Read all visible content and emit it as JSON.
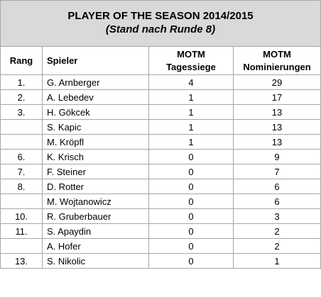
{
  "title": "PLAYER OF THE SEASON 2014/2015",
  "subtitle": "(Stand nach Runde 8)",
  "headers": {
    "rang": "Rang",
    "spieler": "Spieler",
    "tagessiege_line1": "MOTM",
    "tagessiege_line2": "Tagessiege",
    "nominierungen_line1": "MOTM",
    "nominierungen_line2": "Nominierungen"
  },
  "rows": [
    {
      "rang": "1.",
      "name": "G. Arnberger",
      "tagessiege": "4",
      "nominierungen": "29"
    },
    {
      "rang": "2.",
      "name": "A. Lebedev",
      "tagessiege": "1",
      "nominierungen": "17"
    },
    {
      "rang": "3.",
      "name": "H. Gökcek",
      "tagessiege": "1",
      "nominierungen": "13"
    },
    {
      "rang": "",
      "name": "S. Kapic",
      "tagessiege": "1",
      "nominierungen": "13"
    },
    {
      "rang": "",
      "name": "M. Kröpfl",
      "tagessiege": "1",
      "nominierungen": "13"
    },
    {
      "rang": "6.",
      "name": "K. Krisch",
      "tagessiege": "0",
      "nominierungen": "9"
    },
    {
      "rang": "7.",
      "name": "F. Steiner",
      "tagessiege": "0",
      "nominierungen": "7"
    },
    {
      "rang": "8.",
      "name": "D. Rotter",
      "tagessiege": "0",
      "nominierungen": "6"
    },
    {
      "rang": "",
      "name": "M. Wojtanowicz",
      "tagessiege": "0",
      "nominierungen": "6"
    },
    {
      "rang": "10.",
      "name": "R. Gruberbauer",
      "tagessiege": "0",
      "nominierungen": "3"
    },
    {
      "rang": "11.",
      "name": "S. Apaydin",
      "tagessiege": "0",
      "nominierungen": "2"
    },
    {
      "rang": "",
      "name": "A. Hofer",
      "tagessiege": "0",
      "nominierungen": "2"
    },
    {
      "rang": "13.",
      "name": "S. Nikolic",
      "tagessiege": "0",
      "nominierungen": "1"
    }
  ]
}
